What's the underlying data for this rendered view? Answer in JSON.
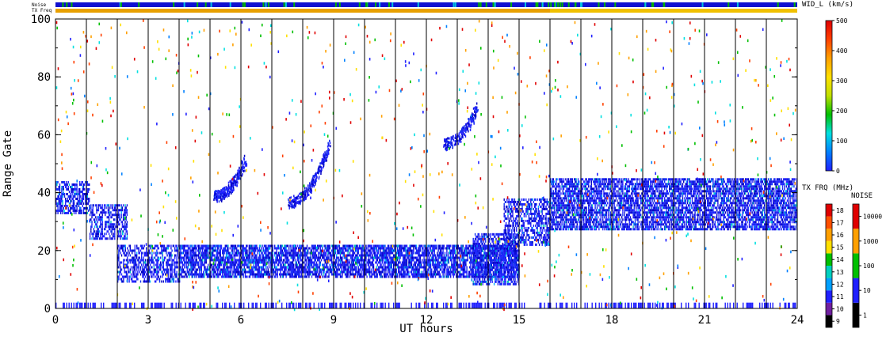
{
  "header": {
    "noise_label": "Noise",
    "txfreq_label": "TX Freq"
  },
  "chart_data": {
    "type": "heatmap",
    "xlabel": "UT hours",
    "ylabel": "Range Gate",
    "xlim": [
      0,
      24
    ],
    "ylim": [
      0,
      100
    ],
    "x_ticks": [
      "0",
      "3",
      "6",
      "9",
      "12",
      "15",
      "18",
      "21",
      "24"
    ],
    "y_ticks": [
      "0",
      "20",
      "40",
      "60",
      "80",
      "100"
    ],
    "scan_boundary_hours": [
      1,
      2,
      3,
      4,
      5,
      6,
      7,
      8,
      9,
      10,
      11,
      12,
      13,
      14,
      15,
      16,
      17,
      18,
      19,
      20,
      21,
      22,
      23
    ],
    "echo_bands": [
      {
        "name": "near-range band",
        "x": [
          2,
          15
        ],
        "y_low": 12,
        "y_high": 21
      },
      {
        "name": "far-range band",
        "x": [
          16,
          24
        ],
        "y_low": 28,
        "y_high": 40
      },
      {
        "name": "early far-range",
        "x": [
          0,
          1.2
        ],
        "y_low": 33,
        "y_high": 42
      },
      {
        "name": "ground gates",
        "x": [
          0,
          24
        ],
        "y_low": 0,
        "y_high": 2
      }
    ],
    "top_bars": [
      {
        "name": "Noise",
        "color": "#1010d0",
        "segments": "mostly blue with sparse green flecks"
      },
      {
        "name": "TX Freq",
        "segments": [
          {
            "x": [
              0,
              16
            ],
            "color": "#e8a000"
          },
          {
            "x": [
              16,
              24
            ],
            "color": "#f0c000"
          }
        ]
      }
    ],
    "colorbars": [
      {
        "title": "WID_L (km/s)",
        "ticks": [
          "0",
          "100",
          "200",
          "300",
          "400",
          "500"
        ],
        "range": [
          0,
          500
        ],
        "colors": [
          "#2020ff",
          "#0080ff",
          "#00e0e0",
          "#00c000",
          "#c0e000",
          "#ffe000",
          "#ffa000",
          "#ff4000",
          "#e00000"
        ]
      },
      {
        "title": "TX FRQ (MHz)",
        "ticks": [
          "9",
          "10",
          "11",
          "12",
          "13",
          "14",
          "15",
          "16",
          "17",
          "18"
        ],
        "colors": [
          "#000000",
          "#7020a0",
          "#2020ff",
          "#00a0ff",
          "#00d0c0",
          "#00c000",
          "#ffe000",
          "#ffa000",
          "#ff5000",
          "#e00000"
        ]
      },
      {
        "title": "NOISE",
        "ticks": [
          "1",
          "10",
          "100",
          "1000",
          "10000"
        ],
        "colors": [
          "#000000",
          "#2020ff",
          "#00c000",
          "#ffa000",
          "#e00000"
        ]
      }
    ]
  }
}
